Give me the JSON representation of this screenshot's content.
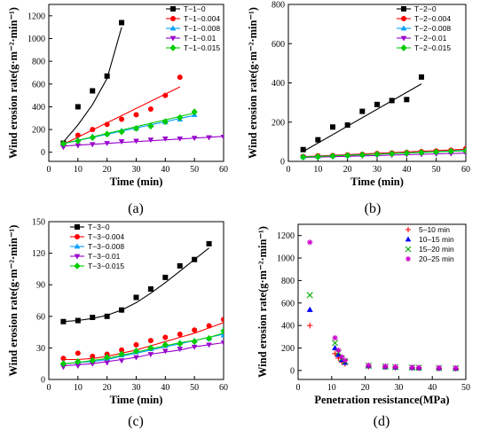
{
  "chart_data": [
    {
      "panel": "(a)",
      "type": "scatter",
      "xlabel": "Time (min)",
      "ylabel": "Wind erosion rate(g·m⁻²·min⁻¹)",
      "xlim": [
        0,
        60
      ],
      "ylim": [
        -80,
        1300
      ],
      "xticks": [
        0,
        10,
        20,
        30,
        40,
        50,
        60
      ],
      "yticks": [
        0,
        200,
        400,
        600,
        800,
        1000,
        1200
      ],
      "legend": "top-right",
      "series": [
        {
          "name": "T−1−0",
          "color": "#000000",
          "marker": "square",
          "x": [
            5,
            10,
            15,
            20,
            25
          ],
          "y": [
            80,
            400,
            540,
            670,
            1140
          ],
          "fit": {
            "x0": 5,
            "x1": 25,
            "y": [
              90,
              240,
              420,
              650,
              1100
            ]
          }
        },
        {
          "name": "T−1−0.004",
          "color": "#ff0000",
          "marker": "circle",
          "x": [
            5,
            10,
            15,
            20,
            25,
            30,
            35,
            40,
            45
          ],
          "y": [
            75,
            150,
            200,
            245,
            290,
            330,
            380,
            500,
            660
          ],
          "fit": {
            "x0": 5,
            "x1": 45,
            "y": [
              70,
              575
            ]
          }
        },
        {
          "name": "T−1−0.008",
          "color": "#00a0ff",
          "marker": "triangle-up",
          "x": [
            5,
            10,
            15,
            20,
            25,
            30,
            35,
            40,
            45,
            50
          ],
          "y": [
            70,
            110,
            140,
            165,
            190,
            210,
            240,
            265,
            290,
            330
          ],
          "fit": {
            "x0": 5,
            "x1": 50,
            "y": [
              75,
              325
            ]
          }
        },
        {
          "name": "T−1−0.01",
          "color": "#9900cc",
          "marker": "triangle-down",
          "x": [
            5,
            10,
            15,
            20,
            25,
            30,
            35,
            40,
            45,
            50,
            55,
            60
          ],
          "y": [
            45,
            60,
            70,
            80,
            95,
            100,
            110,
            120,
            120,
            125,
            130,
            135
          ],
          "fit": {
            "x0": 5,
            "x1": 60,
            "y": [
              55,
              140
            ]
          }
        },
        {
          "name": "T−1−0.015",
          "color": "#00cc00",
          "marker": "diamond",
          "x": [
            5,
            10,
            15,
            20,
            25,
            30,
            35,
            40,
            45,
            50
          ],
          "y": [
            75,
            100,
            130,
            160,
            180,
            210,
            230,
            270,
            305,
            355
          ],
          "fit": {
            "x0": 5,
            "x1": 50,
            "y": [
              75,
              345
            ]
          }
        }
      ]
    },
    {
      "panel": "(b)",
      "type": "scatter",
      "xlabel": "Time (min)",
      "ylabel": "Wind erosion rate(g·m⁻²·min⁻¹)",
      "xlim": [
        0,
        60
      ],
      "ylim": [
        0,
        800
      ],
      "xticks": [
        0,
        10,
        20,
        30,
        40,
        50,
        60
      ],
      "yticks": [
        0,
        200,
        400,
        600,
        800
      ],
      "legend": "top-right",
      "series": [
        {
          "name": "T−2−0",
          "color": "#000000",
          "marker": "square",
          "x": [
            5,
            10,
            15,
            20,
            25,
            30,
            35,
            40,
            45
          ],
          "y": [
            60,
            110,
            175,
            185,
            255,
            290,
            310,
            315,
            430
          ],
          "fit": {
            "x0": 5,
            "x1": 45,
            "y": [
              50,
              395
            ]
          }
        },
        {
          "name": "T−2−0.004",
          "color": "#ff0000",
          "marker": "circle",
          "x": [
            5,
            10,
            15,
            20,
            25,
            30,
            35,
            40,
            45,
            50,
            55,
            60
          ],
          "y": [
            25,
            28,
            30,
            33,
            36,
            40,
            43,
            46,
            50,
            53,
            57,
            65
          ],
          "fit": {
            "x0": 5,
            "x1": 60,
            "y": [
              24,
              62
            ]
          }
        },
        {
          "name": "T−2−0.008",
          "color": "#00a0ff",
          "marker": "triangle-up",
          "x": [
            5,
            10,
            15,
            20,
            25,
            30,
            35,
            40,
            45,
            50,
            55,
            60
          ],
          "y": [
            22,
            25,
            28,
            31,
            34,
            37,
            40,
            43,
            46,
            49,
            52,
            58
          ],
          "fit": {
            "x0": 5,
            "x1": 60,
            "y": [
              22,
              56
            ]
          }
        },
        {
          "name": "T−2−0.01",
          "color": "#9900cc",
          "marker": "triangle-down",
          "x": [
            5,
            10,
            15,
            20,
            25,
            30,
            35,
            40,
            45,
            50,
            55,
            60
          ],
          "y": [
            20,
            22,
            24,
            26,
            28,
            30,
            32,
            34,
            36,
            38,
            40,
            42
          ],
          "fit": {
            "x0": 5,
            "x1": 60,
            "y": [
              20,
              42
            ]
          }
        },
        {
          "name": "T−2−0.015",
          "color": "#00cc00",
          "marker": "diamond",
          "x": [
            5,
            10,
            15,
            20,
            25,
            30,
            35,
            40,
            45,
            50,
            55,
            60
          ],
          "y": [
            22,
            24,
            27,
            30,
            33,
            36,
            39,
            42,
            45,
            48,
            52,
            55
          ],
          "fit": {
            "x0": 5,
            "x1": 60,
            "y": [
              22,
              54
            ]
          }
        }
      ]
    },
    {
      "panel": "(c)",
      "type": "scatter",
      "xlabel": "Time (min)",
      "ylabel": "Wind erosion rate(g·m⁻²·min⁻¹)",
      "xlim": [
        0,
        60
      ],
      "ylim": [
        0,
        150
      ],
      "xticks": [
        0,
        10,
        20,
        30,
        40,
        50,
        60
      ],
      "yticks": [
        0,
        30,
        60,
        90,
        120,
        150
      ],
      "legend": "top-left",
      "series": [
        {
          "name": "T−3−0",
          "color": "#000000",
          "marker": "square",
          "x": [
            5,
            10,
            15,
            20,
            25,
            30,
            35,
            40,
            45,
            50,
            55
          ],
          "y": [
            55,
            56,
            59,
            60,
            66,
            78,
            86,
            97,
            108,
            114,
            129
          ],
          "fit": {
            "x0": 5,
            "x1": 55,
            "y": [
              55,
              56,
              58,
              61,
              66,
              73,
              82,
              92,
              103,
              114,
              125
            ]
          }
        },
        {
          "name": "T−3−0.004",
          "color": "#ff0000",
          "marker": "circle",
          "x": [
            5,
            10,
            15,
            20,
            25,
            30,
            35,
            40,
            45,
            50,
            55,
            60
          ],
          "y": [
            20,
            25,
            22,
            24,
            28,
            33,
            37,
            40,
            43,
            47,
            51,
            57
          ],
          "fit": {
            "x0": 5,
            "x1": 60,
            "y": [
              19,
              19,
              20,
              22,
              25,
              28,
              32,
              36,
              40,
              44,
              49,
              54
            ]
          }
        },
        {
          "name": "T−3−0.008",
          "color": "#00a0ff",
          "marker": "triangle-up",
          "x": [
            5,
            10,
            15,
            20,
            25,
            30,
            35,
            40,
            45,
            50,
            55,
            60
          ],
          "y": [
            16,
            17,
            18,
            20,
            23,
            26,
            29,
            32,
            35,
            37,
            39,
            42
          ],
          "fit": {
            "x0": 5,
            "x1": 60,
            "y": [
              15,
              16,
              17,
              19,
              22,
              25,
              28,
              31,
              34,
              37,
              40,
              43
            ]
          }
        },
        {
          "name": "T−3−0.01",
          "color": "#9900cc",
          "marker": "triangle-down",
          "x": [
            5,
            10,
            15,
            20,
            25,
            30,
            35,
            40,
            45,
            50,
            55,
            60
          ],
          "y": [
            12,
            13,
            15,
            16,
            18,
            21,
            24,
            27,
            29,
            31,
            33,
            35
          ],
          "fit": {
            "x0": 5,
            "x1": 60,
            "y": [
              13,
              14,
              15,
              17,
              19,
              21,
              24,
              26,
              28,
              31,
              33,
              35
            ]
          }
        },
        {
          "name": "T−3−0.015",
          "color": "#00cc00",
          "marker": "diamond",
          "x": [
            5,
            10,
            15,
            20,
            25,
            30,
            35,
            40,
            45,
            50,
            55,
            60
          ],
          "y": [
            15,
            17,
            18,
            21,
            24,
            27,
            30,
            33,
            34,
            36,
            39,
            46
          ],
          "fit": {
            "x0": 5,
            "x1": 60,
            "y": [
              15,
              16,
              18,
              20,
              23,
              26,
              29,
              32,
              35,
              37,
              40,
              44
            ]
          }
        }
      ]
    },
    {
      "panel": "(d)",
      "type": "scatter",
      "xlabel": "Penetration resistance(MPa)",
      "ylabel": "Wind erosion rate(g·m⁻²·min⁻¹)",
      "xlim": [
        0,
        50
      ],
      "ylim": [
        -80,
        1300
      ],
      "xticks": [
        0,
        10,
        20,
        30,
        40,
        50
      ],
      "yticks": [
        0,
        200,
        400,
        600,
        800,
        1000,
        1200
      ],
      "legend": "top-right",
      "series": [
        {
          "name": "5–10 min",
          "color": "#ff0000",
          "marker": "plus",
          "x": [
            3.5,
            11,
            12,
            13,
            14,
            21,
            26,
            29,
            34,
            36,
            42,
            47
          ],
          "y": [
            400,
            150,
            110,
            75,
            60,
            35,
            30,
            25,
            22,
            20,
            18,
            15
          ]
        },
        {
          "name": "10–15 min",
          "color": "#0000ff",
          "marker": "triangle-up",
          "x": [
            3.5,
            11,
            12,
            13,
            14,
            21,
            26,
            29,
            34,
            36,
            42,
            47
          ],
          "y": [
            540,
            200,
            140,
            95,
            70,
            40,
            32,
            28,
            25,
            22,
            20,
            18
          ]
        },
        {
          "name": "15–20 min",
          "color": "#00aa00",
          "marker": "x",
          "x": [
            3.5,
            11,
            12,
            13,
            14,
            21,
            26,
            29,
            34,
            36,
            42,
            47
          ],
          "y": [
            670,
            245,
            160,
            105,
            80,
            42,
            35,
            30,
            26,
            24,
            22,
            20
          ]
        },
        {
          "name": "20–25 min",
          "color": "#cc00cc",
          "marker": "asterisk",
          "x": [
            3.5,
            11,
            12,
            13,
            14,
            21,
            26,
            29,
            34,
            36,
            42,
            47
          ],
          "y": [
            1140,
            290,
            180,
            120,
            90,
            45,
            38,
            33,
            28,
            26,
            24,
            22
          ]
        }
      ]
    }
  ],
  "panel_labels": [
    "(a)",
    "(b)",
    "(c)",
    "(d)"
  ]
}
